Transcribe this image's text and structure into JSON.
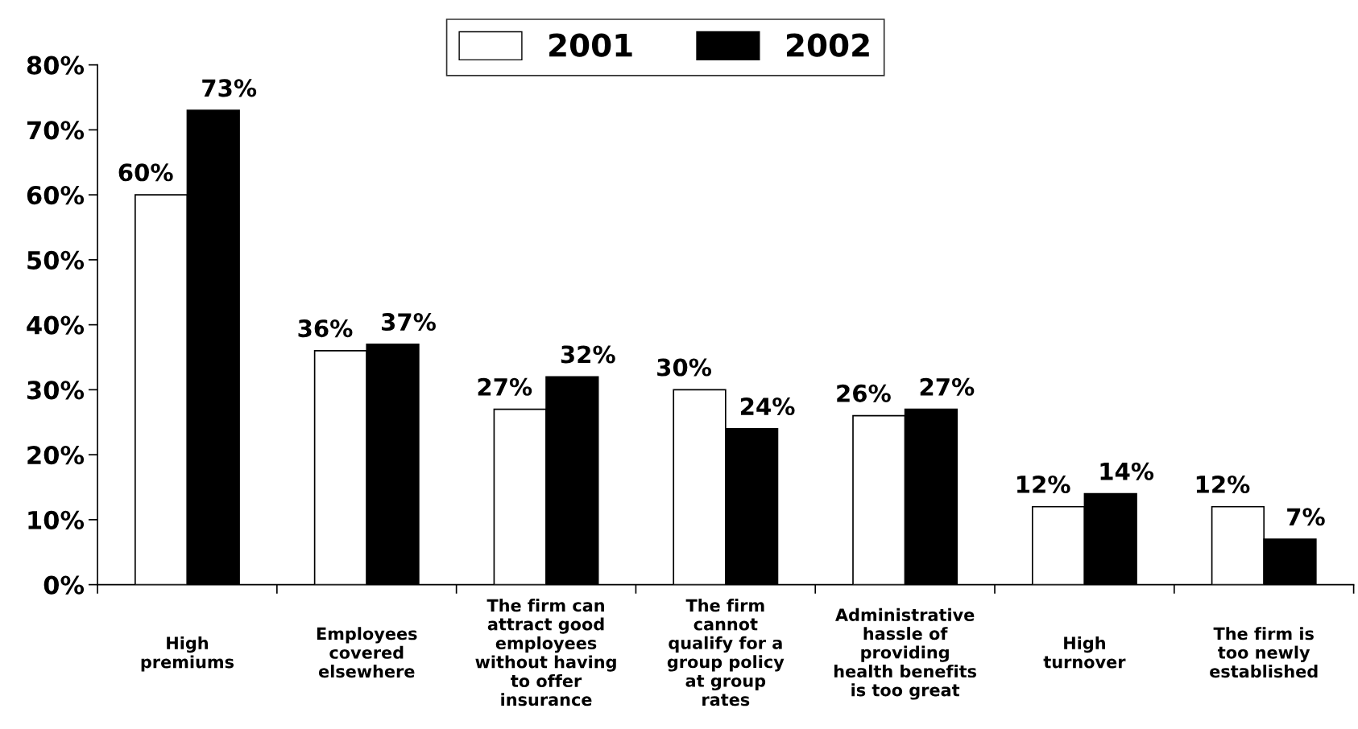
{
  "chart_data": {
    "type": "bar",
    "categories": [
      "High\npremiums",
      "Employees\ncovered\nelsewhere",
      "The firm can\nattract good\nemployees\nwithout having\nto offer\ninsurance",
      "The firm\ncannot\nqualify for a\ngroup policy\nat group\nrates",
      "Administrative\nhassle of\nproviding\nhealth benefits\nis too great",
      "High\nturnover",
      "The firm is\ntoo newly\nestablished"
    ],
    "series": [
      {
        "name": "2001",
        "color": "#ffffff",
        "values": [
          60,
          36,
          27,
          30,
          26,
          12,
          12
        ],
        "value_labels": [
          "60%",
          "36%",
          "27%",
          "30%",
          "26%",
          "12%",
          "12%"
        ]
      },
      {
        "name": "2002",
        "color": "#000000",
        "values": [
          73,
          37,
          32,
          24,
          27,
          14,
          7
        ],
        "value_labels": [
          "73%",
          "37%",
          "32%",
          "24%",
          "27%",
          "14%",
          "7%"
        ]
      }
    ],
    "ylim": [
      0,
      80
    ],
    "yticks": [
      {
        "value": 0,
        "label": "0%"
      },
      {
        "value": 10,
        "label": "10%"
      },
      {
        "value": 20,
        "label": "20%"
      },
      {
        "value": 30,
        "label": "30%"
      },
      {
        "value": 40,
        "label": "40%"
      },
      {
        "value": 50,
        "label": "50%"
      },
      {
        "value": 60,
        "label": "60%"
      },
      {
        "value": 70,
        "label": "70%"
      },
      {
        "value": 80,
        "label": "80%"
      }
    ],
    "grid": false,
    "legend": "top"
  }
}
